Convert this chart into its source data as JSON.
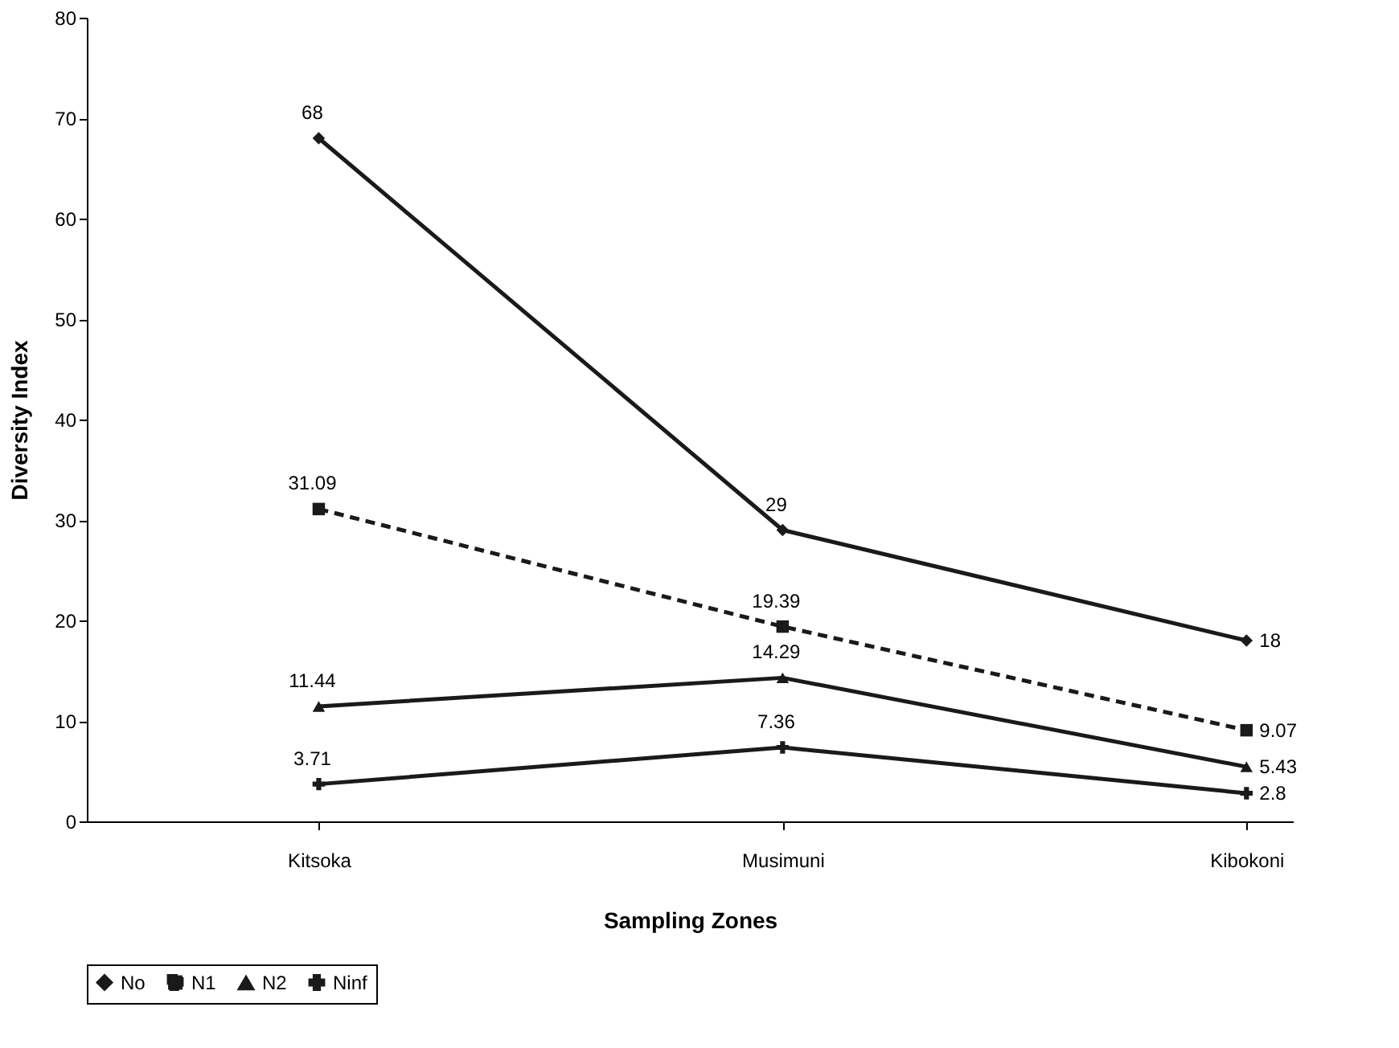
{
  "chart_data": {
    "type": "line",
    "xlabel": "Sampling Zones",
    "ylabel": "Diversity Index",
    "categories": [
      "Kitsoka",
      "Musimuni",
      "Kibokoni"
    ],
    "series": [
      {
        "name": "No",
        "color": "#1a1a1a",
        "values": [
          68,
          29,
          18
        ],
        "marker": "diamond",
        "line_style": "solid"
      },
      {
        "name": "N1",
        "color": "#1a1a1a",
        "values": [
          31.09,
          19.39,
          9.07
        ],
        "marker": "square",
        "line_style": "dashed"
      },
      {
        "name": "N2",
        "color": "#1a1a1a",
        "values": [
          11.44,
          14.29,
          5.43
        ],
        "marker": "triangle",
        "line_style": "solid"
      },
      {
        "name": "Ninf",
        "color": "#1a1a1a",
        "values": [
          3.71,
          7.36,
          2.8
        ],
        "marker": "cross",
        "line_style": "solid"
      }
    ],
    "ylim": [
      0,
      80
    ],
    "yticks": [
      0,
      10,
      20,
      30,
      40,
      50,
      60,
      70,
      80
    ],
    "data_labels": true,
    "legend": "bottom",
    "grid": false
  }
}
